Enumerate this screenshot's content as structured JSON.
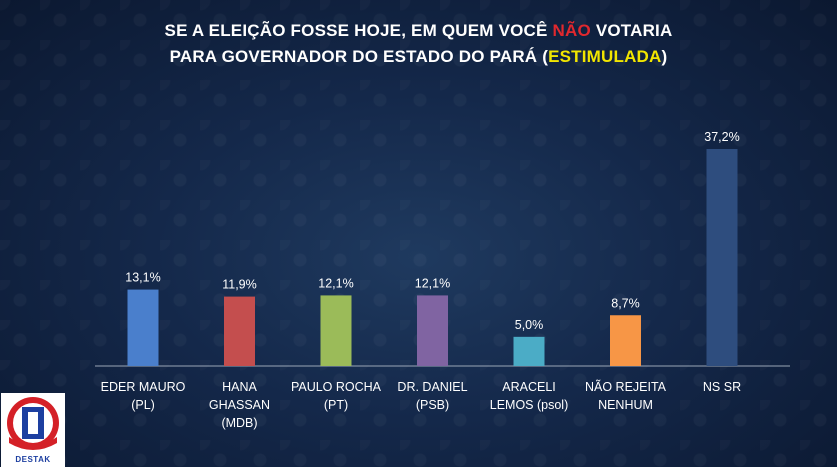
{
  "title": {
    "line1_prefix": "SE A ELEIÇÃO FOSSE HOJE, EM QUEM VOCÊ ",
    "line1_highlight": "NÃO",
    "line1_suffix": " VOTARIA",
    "line2_prefix": "PARA GOVERNADOR DO ESTADO DO PARÁ (",
    "line2_highlight": "ESTIMULADA",
    "line2_suffix": ")"
  },
  "colors": {
    "title_highlight_red": "#e0282e",
    "title_highlight_yellow": "#f2e600",
    "axis": "#9aa6b6"
  },
  "logo": {
    "text": "DESTAK"
  },
  "chart_data": {
    "type": "bar",
    "categories": [
      [
        "EDER MAURO",
        "(PL)"
      ],
      [
        "HANA",
        "GHASSAN",
        "(MDB)"
      ],
      [
        "PAULO ROCHA",
        "(PT)"
      ],
      [
        "DR. DANIEL",
        "(PSB)"
      ],
      [
        "ARACELI",
        "LEMOS (psol)"
      ],
      [
        "NÃO REJEITA",
        "NENHUM"
      ],
      [
        "NS SR"
      ]
    ],
    "values": [
      13.1,
      11.9,
      12.1,
      12.1,
      5.0,
      8.7,
      37.2
    ],
    "value_labels": [
      "13,1%",
      "11,9%",
      "12,1%",
      "12,1%",
      "5,0%",
      "8,7%",
      "37,2%"
    ],
    "colors": [
      "#4a7fcc",
      "#c44e4e",
      "#9bbb59",
      "#8064a2",
      "#4bacc6",
      "#f79646",
      "#2e4d7e"
    ],
    "ylim": [
      0,
      37.2
    ],
    "grid": false,
    "legend": "none"
  }
}
